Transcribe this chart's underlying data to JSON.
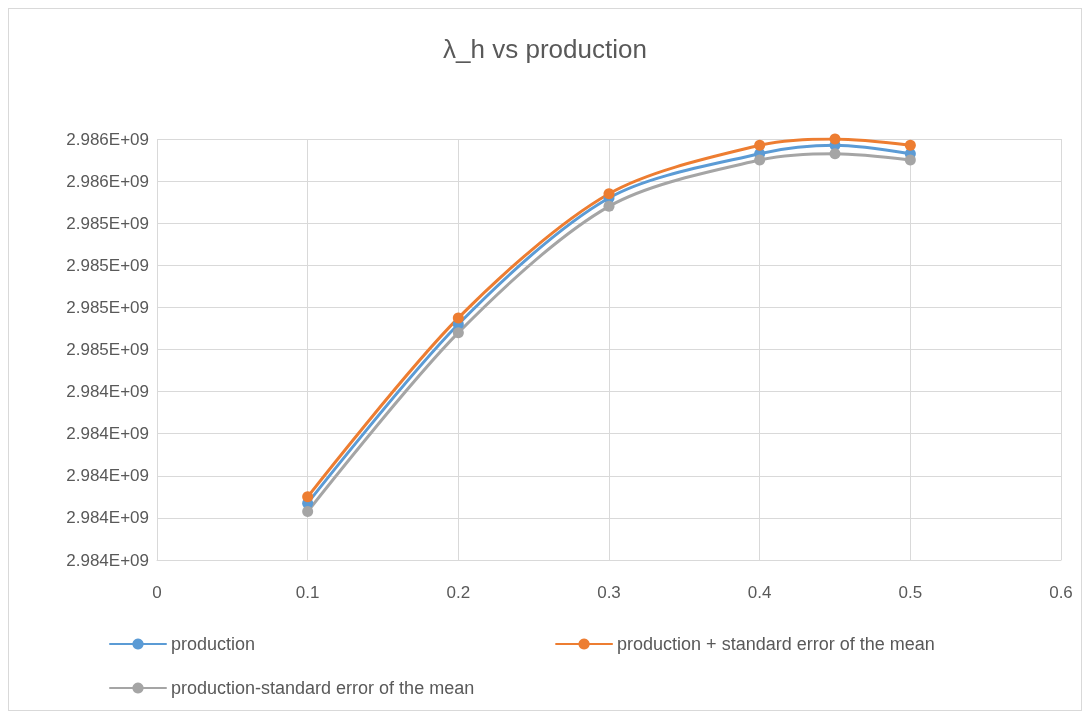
{
  "chart_data": {
    "type": "line",
    "title": "λ_h vs production",
    "x": [
      0.1,
      0.2,
      0.3,
      0.4,
      0.45,
      0.5
    ],
    "series": [
      {
        "name": "production",
        "color": "#5b9bd5",
        "values": [
          2983970000,
          2984820000,
          2985420000,
          2985630000,
          2985670000,
          2985630000
        ]
      },
      {
        "name": "production + standard error of the mean",
        "color": "#ed7d31",
        "values": [
          2984000000,
          2984850000,
          2985440000,
          2985670000,
          2985700000,
          2985670000
        ]
      },
      {
        "name": "production-standard error of the mean",
        "color": "#a5a5a5",
        "values": [
          2983930000,
          2984780000,
          2985380000,
          2985600000,
          2985630000,
          2985600000
        ]
      }
    ],
    "xlim": [
      0,
      0.6
    ],
    "xticks": [
      0,
      0.1,
      0.2,
      0.3,
      0.4,
      0.5,
      0.6
    ],
    "ylim": [
      2983700000,
      2985700000
    ],
    "yticks": [
      {
        "value": 2983700000,
        "label": "2.984E+09"
      },
      {
        "value": 2983900000,
        "label": "2.984E+09"
      },
      {
        "value": 2984100000,
        "label": "2.984E+09"
      },
      {
        "value": 2984300000,
        "label": "2.984E+09"
      },
      {
        "value": 2984500000,
        "label": "2.984E+09"
      },
      {
        "value": 2984700000,
        "label": "2.985E+09"
      },
      {
        "value": 2984900000,
        "label": "2.985E+09"
      },
      {
        "value": 2985100000,
        "label": "2.985E+09"
      },
      {
        "value": 2985300000,
        "label": "2.985E+09"
      },
      {
        "value": 2985500000,
        "label": "2.986E+09"
      },
      {
        "value": 2985700000,
        "label": "2.986E+09"
      }
    ],
    "grid": true,
    "legend": "bottom",
    "marker": "circle",
    "line_style": "solid"
  }
}
